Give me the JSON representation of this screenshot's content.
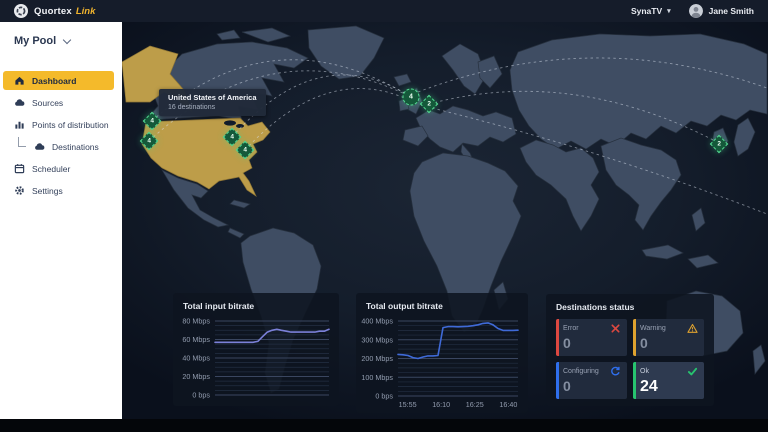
{
  "header": {
    "brand_name": "Quortex",
    "brand_suffix": "Link",
    "org": "SynaTV",
    "user": "Jane Smith"
  },
  "sidebar": {
    "pool": "My Pool",
    "items": [
      {
        "label": "Dashboard",
        "icon": "home-icon",
        "active": true,
        "sub": false
      },
      {
        "label": "Sources",
        "icon": "cloud-icon",
        "active": false,
        "sub": false
      },
      {
        "label": "Points of distribution",
        "icon": "bar-chart-icon",
        "active": false,
        "sub": false
      },
      {
        "label": "Destinations",
        "icon": "cloud-icon",
        "active": false,
        "sub": true
      },
      {
        "label": "Scheduler",
        "icon": "calendar-icon",
        "active": false,
        "sub": false
      },
      {
        "label": "Settings",
        "icon": "gear-icon",
        "active": false,
        "sub": false
      }
    ]
  },
  "map": {
    "tooltip": {
      "title": "United States of America",
      "subtitle": "16 destinations"
    },
    "highlight_color": "#bd9d49",
    "marker_color": "#14593a",
    "markers": [
      {
        "region": "us-northwest",
        "count": "4",
        "shape": "diamond",
        "x": 152,
        "y": 121
      },
      {
        "region": "us-west",
        "count": "4",
        "shape": "diamond",
        "x": 149,
        "y": 141
      },
      {
        "region": "us-east-north",
        "count": "4",
        "shape": "diamond",
        "x": 232,
        "y": 137
      },
      {
        "region": "us-east-south",
        "count": "4",
        "shape": "diamond",
        "x": 245,
        "y": 150
      },
      {
        "region": "europe-uk",
        "count": "4",
        "shape": "circle",
        "x": 411,
        "y": 97
      },
      {
        "region": "europe-west",
        "count": "2",
        "shape": "diamond",
        "x": 429,
        "y": 104
      },
      {
        "region": "asia-east",
        "count": "2",
        "shape": "diamond",
        "x": 719,
        "y": 144
      }
    ]
  },
  "chart_data": [
    {
      "type": "line",
      "title": "Total input bitrate",
      "ylabel": "bitrate",
      "y_ticks": [
        "80 Mbps",
        "60 Mbps",
        "40 Mbps",
        "20 Mbps",
        "0 bps"
      ],
      "y_tick_values": [
        80,
        60,
        40,
        20,
        0
      ],
      "ylim": [
        0,
        80
      ],
      "x_ticks": [],
      "grid": true,
      "legend": false,
      "unit": "Mbps",
      "color": "#7b80d8",
      "values": [
        57,
        57,
        57,
        57,
        57,
        57,
        57,
        57,
        57,
        58,
        63,
        68,
        70,
        71,
        70,
        69,
        68,
        68,
        68,
        68,
        68,
        68,
        69,
        69,
        71
      ]
    },
    {
      "type": "line",
      "title": "Total output bitrate",
      "ylabel": "bitrate",
      "y_ticks": [
        "400 Mbps",
        "300 Mbps",
        "200 Mbps",
        "100 Mbps",
        "0 bps"
      ],
      "y_tick_values": [
        400,
        300,
        200,
        100,
        0
      ],
      "ylim": [
        0,
        400
      ],
      "x_ticks": [
        "15:55",
        "16:10",
        "16:25",
        "16:40"
      ],
      "grid": true,
      "legend": false,
      "unit": "Mbps",
      "color": "#3f6ad8",
      "values": [
        222,
        220,
        216,
        205,
        200,
        208,
        214,
        214,
        216,
        365,
        370,
        370,
        369,
        370,
        372,
        375,
        380,
        387,
        390,
        380,
        360,
        350,
        350,
        350,
        351
      ]
    }
  ],
  "status": {
    "title": "Destinations status",
    "cards": [
      {
        "label": "Error",
        "value": "0",
        "icon": "error-x-icon",
        "color": "#dd4840",
        "highlight": false
      },
      {
        "label": "Warning",
        "value": "0",
        "icon": "warning-triangle-icon",
        "color": "#dfa22f",
        "highlight": false
      },
      {
        "label": "Configuring",
        "value": "0",
        "icon": "refresh-icon",
        "color": "#2f6fed",
        "highlight": false
      },
      {
        "label": "Ok",
        "value": "24",
        "icon": "check-icon",
        "color": "#27c46f",
        "highlight": true
      }
    ]
  }
}
